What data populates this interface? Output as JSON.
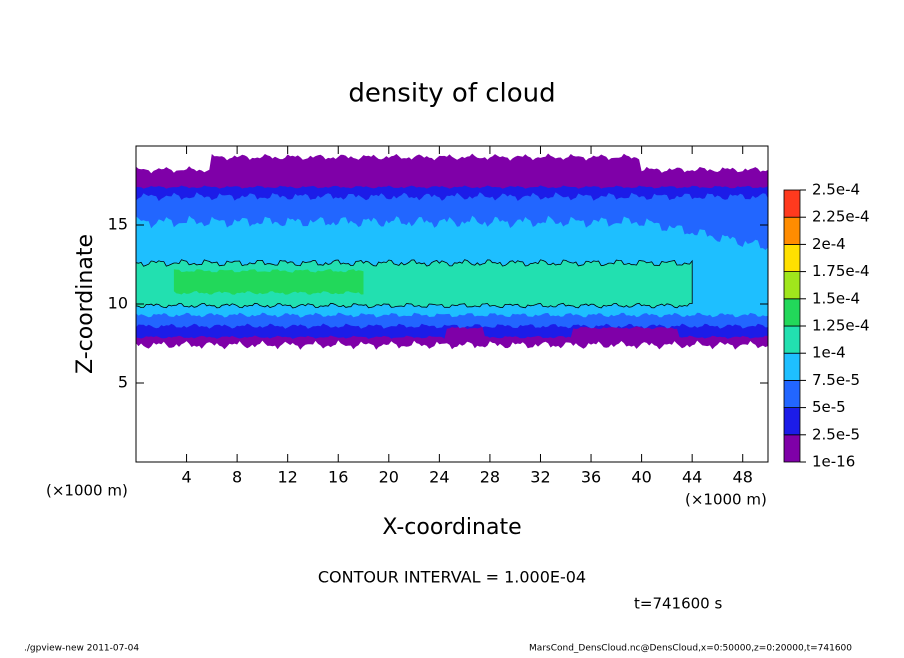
{
  "chart_data": {
    "type": "contour",
    "title": "density of cloud",
    "xlabel": "X-coordinate",
    "ylabel": "Z-coordinate",
    "x_unit": "(×1000 m)",
    "xlim": [
      0,
      50
    ],
    "ylim": [
      0,
      20
    ],
    "xticks": [
      4,
      8,
      12,
      16,
      20,
      24,
      28,
      32,
      36,
      40,
      44,
      48
    ],
    "yticks": [
      5,
      10,
      15
    ],
    "levels": [
      1e-16,
      {
        "value": 2.5e-05,
        "label": "2.5e-5"
      },
      {
        "value": 5e-05,
        "label": "5e-5"
      },
      {
        "value": 7.5e-05,
        "label": "7.5e-5"
      },
      {
        "value": 0.0001,
        "label": "1e-4"
      },
      {
        "value": 0.000125,
        "label": "1.25e-4"
      },
      {
        "value": 0.00015,
        "label": "1.5e-4"
      },
      {
        "value": 0.000175,
        "label": "1.75e-4"
      },
      {
        "value": 0.0002,
        "label": "2e-4"
      },
      {
        "value": 0.000225,
        "label": "2.25e-4"
      },
      {
        "value": 0.00025,
        "label": "2.5e-4"
      }
    ],
    "colors": [
      "#7f00a8",
      "#1c1ce8",
      "#2266ff",
      "#1ebfff",
      "#22e0b0",
      "#22d85a",
      "#a0e61c",
      "#ffe000",
      "#ff8c00",
      "#ff3a1e"
    ],
    "contour_interval": "CONTOUR INTERVAL = 1.000E-04",
    "time": "t=741600 s",
    "footer_left": "./gpview-new  2011-07-04",
    "footer_right": "MarsCond_DensCloud.nc@DensCloud,x=0:50000,z=0:20000,t=741600"
  }
}
